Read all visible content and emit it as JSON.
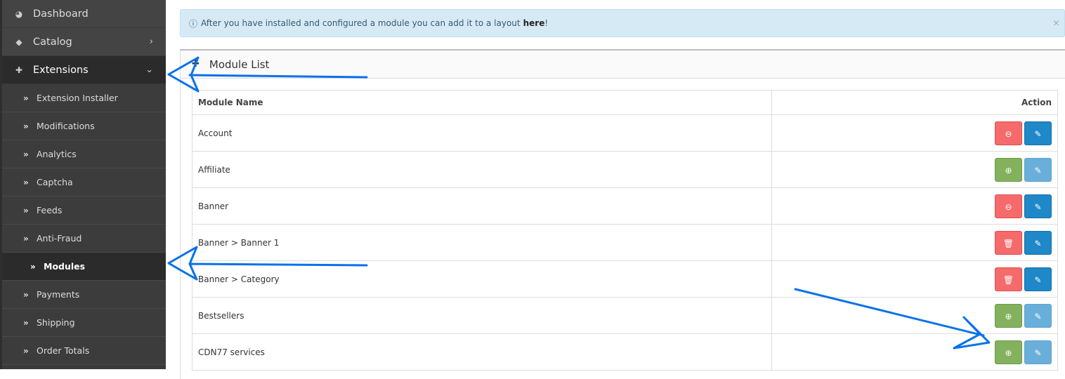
{
  "sidebar": {
    "top": [
      {
        "label": "Dashboard",
        "icon": "dashboard-icon"
      },
      {
        "label": "Catalog",
        "icon": "tags-icon"
      },
      {
        "label": "Extensions",
        "icon": "puzzle-icon"
      }
    ],
    "sub": [
      "Extension Installer",
      "Modifications",
      "Analytics",
      "Captcha",
      "Feeds",
      "Anti-Fraud",
      "Modules",
      "Payments",
      "Shipping",
      "Order Totals"
    ]
  },
  "alert": {
    "text": "After you have installed and configured a module you can add it to a layout",
    "link": "here",
    "suffix": "!"
  },
  "panel": {
    "title": "Module List"
  },
  "table": {
    "headers": [
      "Module Name",
      "Action"
    ],
    "rows": [
      {
        "name": "Account",
        "status": "installed",
        "action": "uninstall"
      },
      {
        "name": "Affiliate",
        "status": "not-installed",
        "action": "install"
      },
      {
        "name": "Banner",
        "status": "installed",
        "action": "uninstall"
      },
      {
        "name": "Banner > Banner 1",
        "status": "instance",
        "action": "delete"
      },
      {
        "name": "Banner > Category",
        "status": "instance",
        "action": "delete"
      },
      {
        "name": "Bestsellers",
        "status": "not-installed",
        "action": "install"
      },
      {
        "name": "CDN77 services",
        "status": "not-installed",
        "action": "install"
      }
    ]
  },
  "colors": {
    "annotation_arrow": "#0a72e8",
    "danger": "#f56b6b",
    "success": "#83b15d",
    "primary": "#1e88c8"
  }
}
